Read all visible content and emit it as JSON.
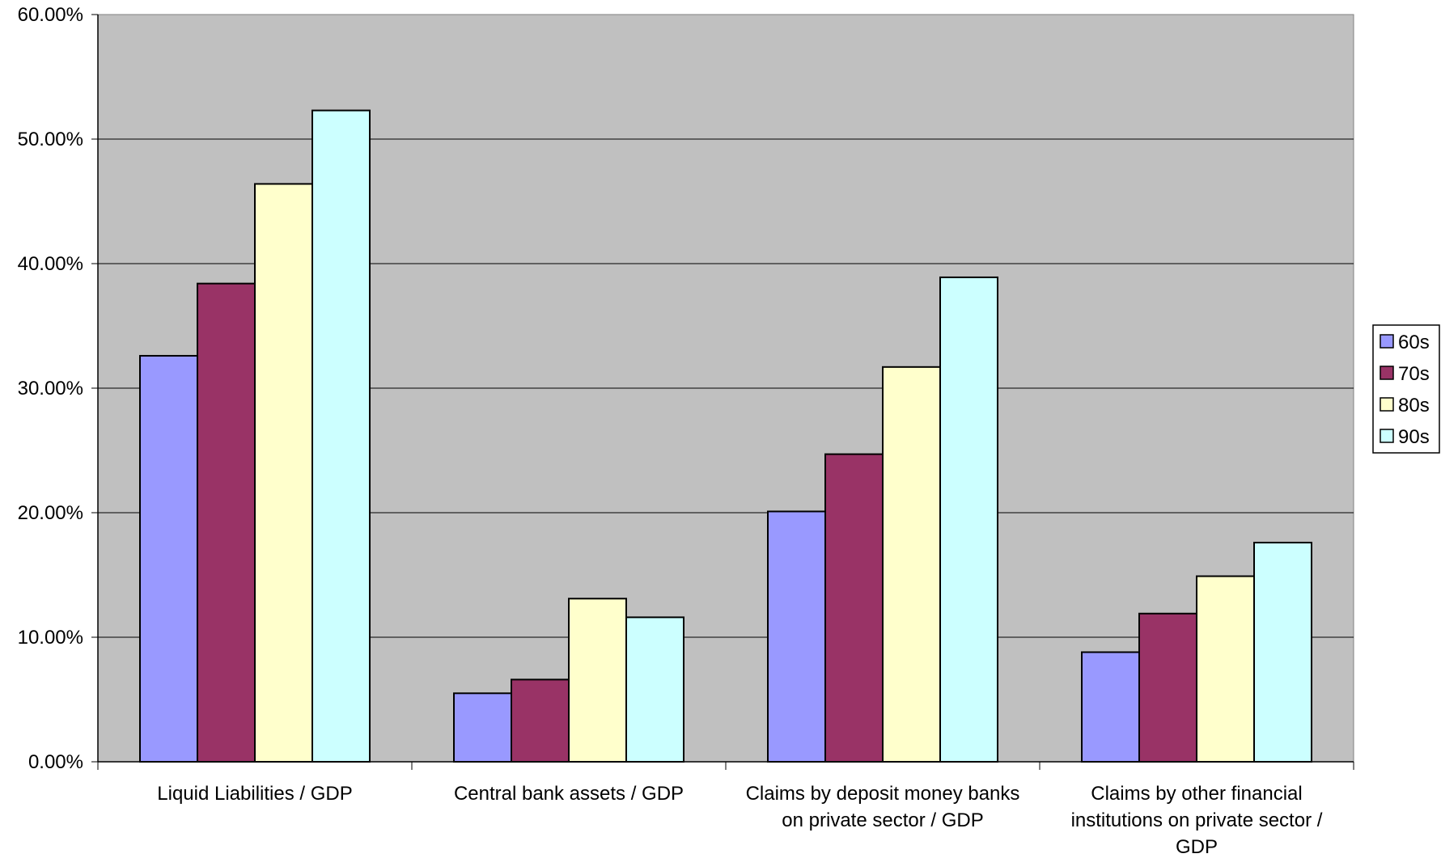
{
  "chart_data": {
    "type": "bar",
    "categories": [
      [
        "Liquid Liabilities / GDP"
      ],
      [
        "Central bank assets / GDP"
      ],
      [
        "Claims by deposit money banks",
        "on private sector / GDP"
      ],
      [
        "Claims by other financial",
        "institutions on private sector /",
        "GDP"
      ]
    ],
    "series": [
      {
        "name": "60s",
        "color": "#9999ff",
        "values": [
          0.326,
          0.055,
          0.201,
          0.088
        ]
      },
      {
        "name": "70s",
        "color": "#993366",
        "values": [
          0.384,
          0.066,
          0.247,
          0.119
        ]
      },
      {
        "name": "80s",
        "color": "#ffffcc",
        "values": [
          0.464,
          0.131,
          0.317,
          0.149
        ]
      },
      {
        "name": "90s",
        "color": "#ccffff",
        "values": [
          0.523,
          0.116,
          0.389,
          0.176
        ]
      }
    ],
    "ylim": [
      0,
      0.6
    ],
    "yticks": [
      0,
      0.1,
      0.2,
      0.3,
      0.4,
      0.5,
      0.6
    ],
    "ytick_labels": [
      "0.00%",
      "10.00%",
      "20.00%",
      "30.00%",
      "40.00%",
      "50.00%",
      "60.00%"
    ],
    "title": "",
    "xlabel": "",
    "ylabel": "",
    "grid": "horizontal",
    "legend": "right",
    "plot_background": "#c0c0c0"
  }
}
